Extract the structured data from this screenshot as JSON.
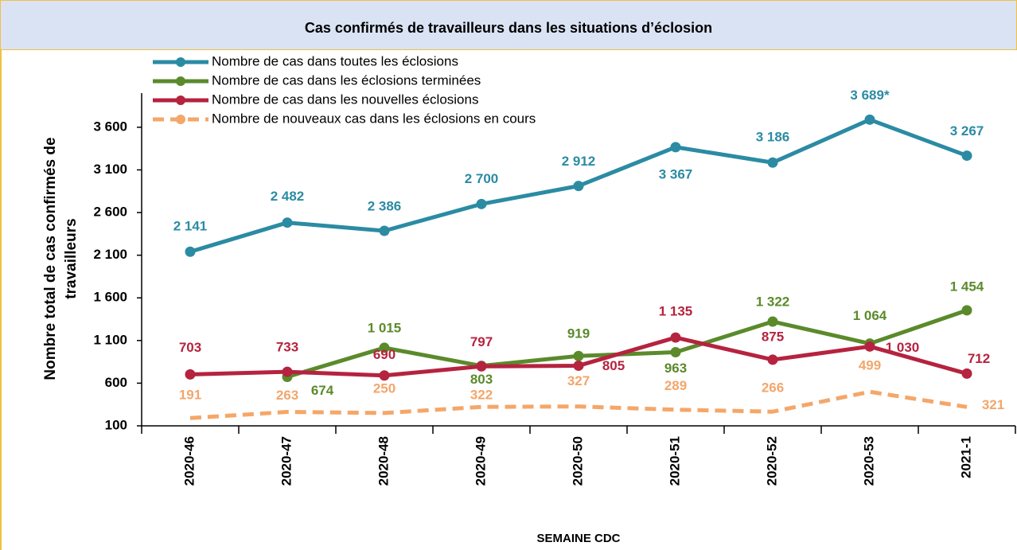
{
  "chart_data": {
    "type": "line",
    "title": "Cas confirmés de travailleurs dans les situations d’éclosion",
    "ylabel": [
      "Nombre total de cas confirmés de",
      "travailleurs"
    ],
    "xlabel": "SEMAINE  CDC",
    "categories": [
      "2020-46",
      "2020-47",
      "2020-48",
      "2020-49",
      "2020-50",
      "2020-51",
      "2020-52",
      "2020-53",
      "2021-1"
    ],
    "ylim": [
      100,
      4000
    ],
    "yticks": [
      100,
      600,
      {
        "value": 1100,
        "label": "1 100"
      },
      {
        "value": 1600,
        "label": "1 600"
      },
      {
        "value": 2100,
        "label": "2 100"
      },
      {
        "value": 2600,
        "label": "2 600"
      },
      {
        "value": 3100,
        "label": "3 100"
      },
      {
        "value": 3600,
        "label": "3 600"
      }
    ],
    "series": [
      {
        "name": "Nombre de cas dans toutes les éclosions",
        "color": "#2b8ba3",
        "label_color": "#2b8ba3",
        "dashed": false,
        "markers": true,
        "values": [
          2141,
          2482,
          2386,
          2700,
          2912,
          3367,
          3186,
          3689,
          3267
        ],
        "value_labels": [
          "2 141",
          "2 482",
          "2 386",
          "2 700",
          "2 912",
          "3 367",
          "3 186",
          "3 689*",
          "3 267"
        ]
      },
      {
        "name": "Nombre de cas dans les éclosions terminées",
        "color": "#5b8a2b",
        "label_color": "#5b8a2b",
        "dashed": false,
        "markers": true,
        "values": [
          null,
          674,
          1015,
          803,
          919,
          963,
          1322,
          1064,
          1454
        ],
        "value_labels": [
          null,
          "674",
          "1 015",
          "803",
          "919",
          "963",
          "1 322",
          "1 064",
          "1 454"
        ]
      },
      {
        "name": "Nombre de cas dans les nouvelles éclosions",
        "color": "#b5233f",
        "label_color": "#b5233f",
        "dashed": false,
        "markers": true,
        "values": [
          703,
          733,
          690,
          797,
          805,
          1135,
          875,
          1030,
          712
        ],
        "value_labels": [
          "703",
          "733",
          "690",
          "797",
          "805",
          "1 135",
          "875",
          "1 030",
          "712"
        ]
      },
      {
        "name": "Nombre de nouveaux cas dans les éclosions en cours",
        "color": "#f4a769",
        "label_color": "#f2a66c",
        "dashed": true,
        "markers": false,
        "values": [
          191,
          263,
          250,
          322,
          327,
          289,
          266,
          499,
          321
        ],
        "value_labels": [
          "191",
          "263",
          "250",
          "322",
          "327",
          "289",
          "266",
          "499",
          "321"
        ]
      }
    ]
  }
}
